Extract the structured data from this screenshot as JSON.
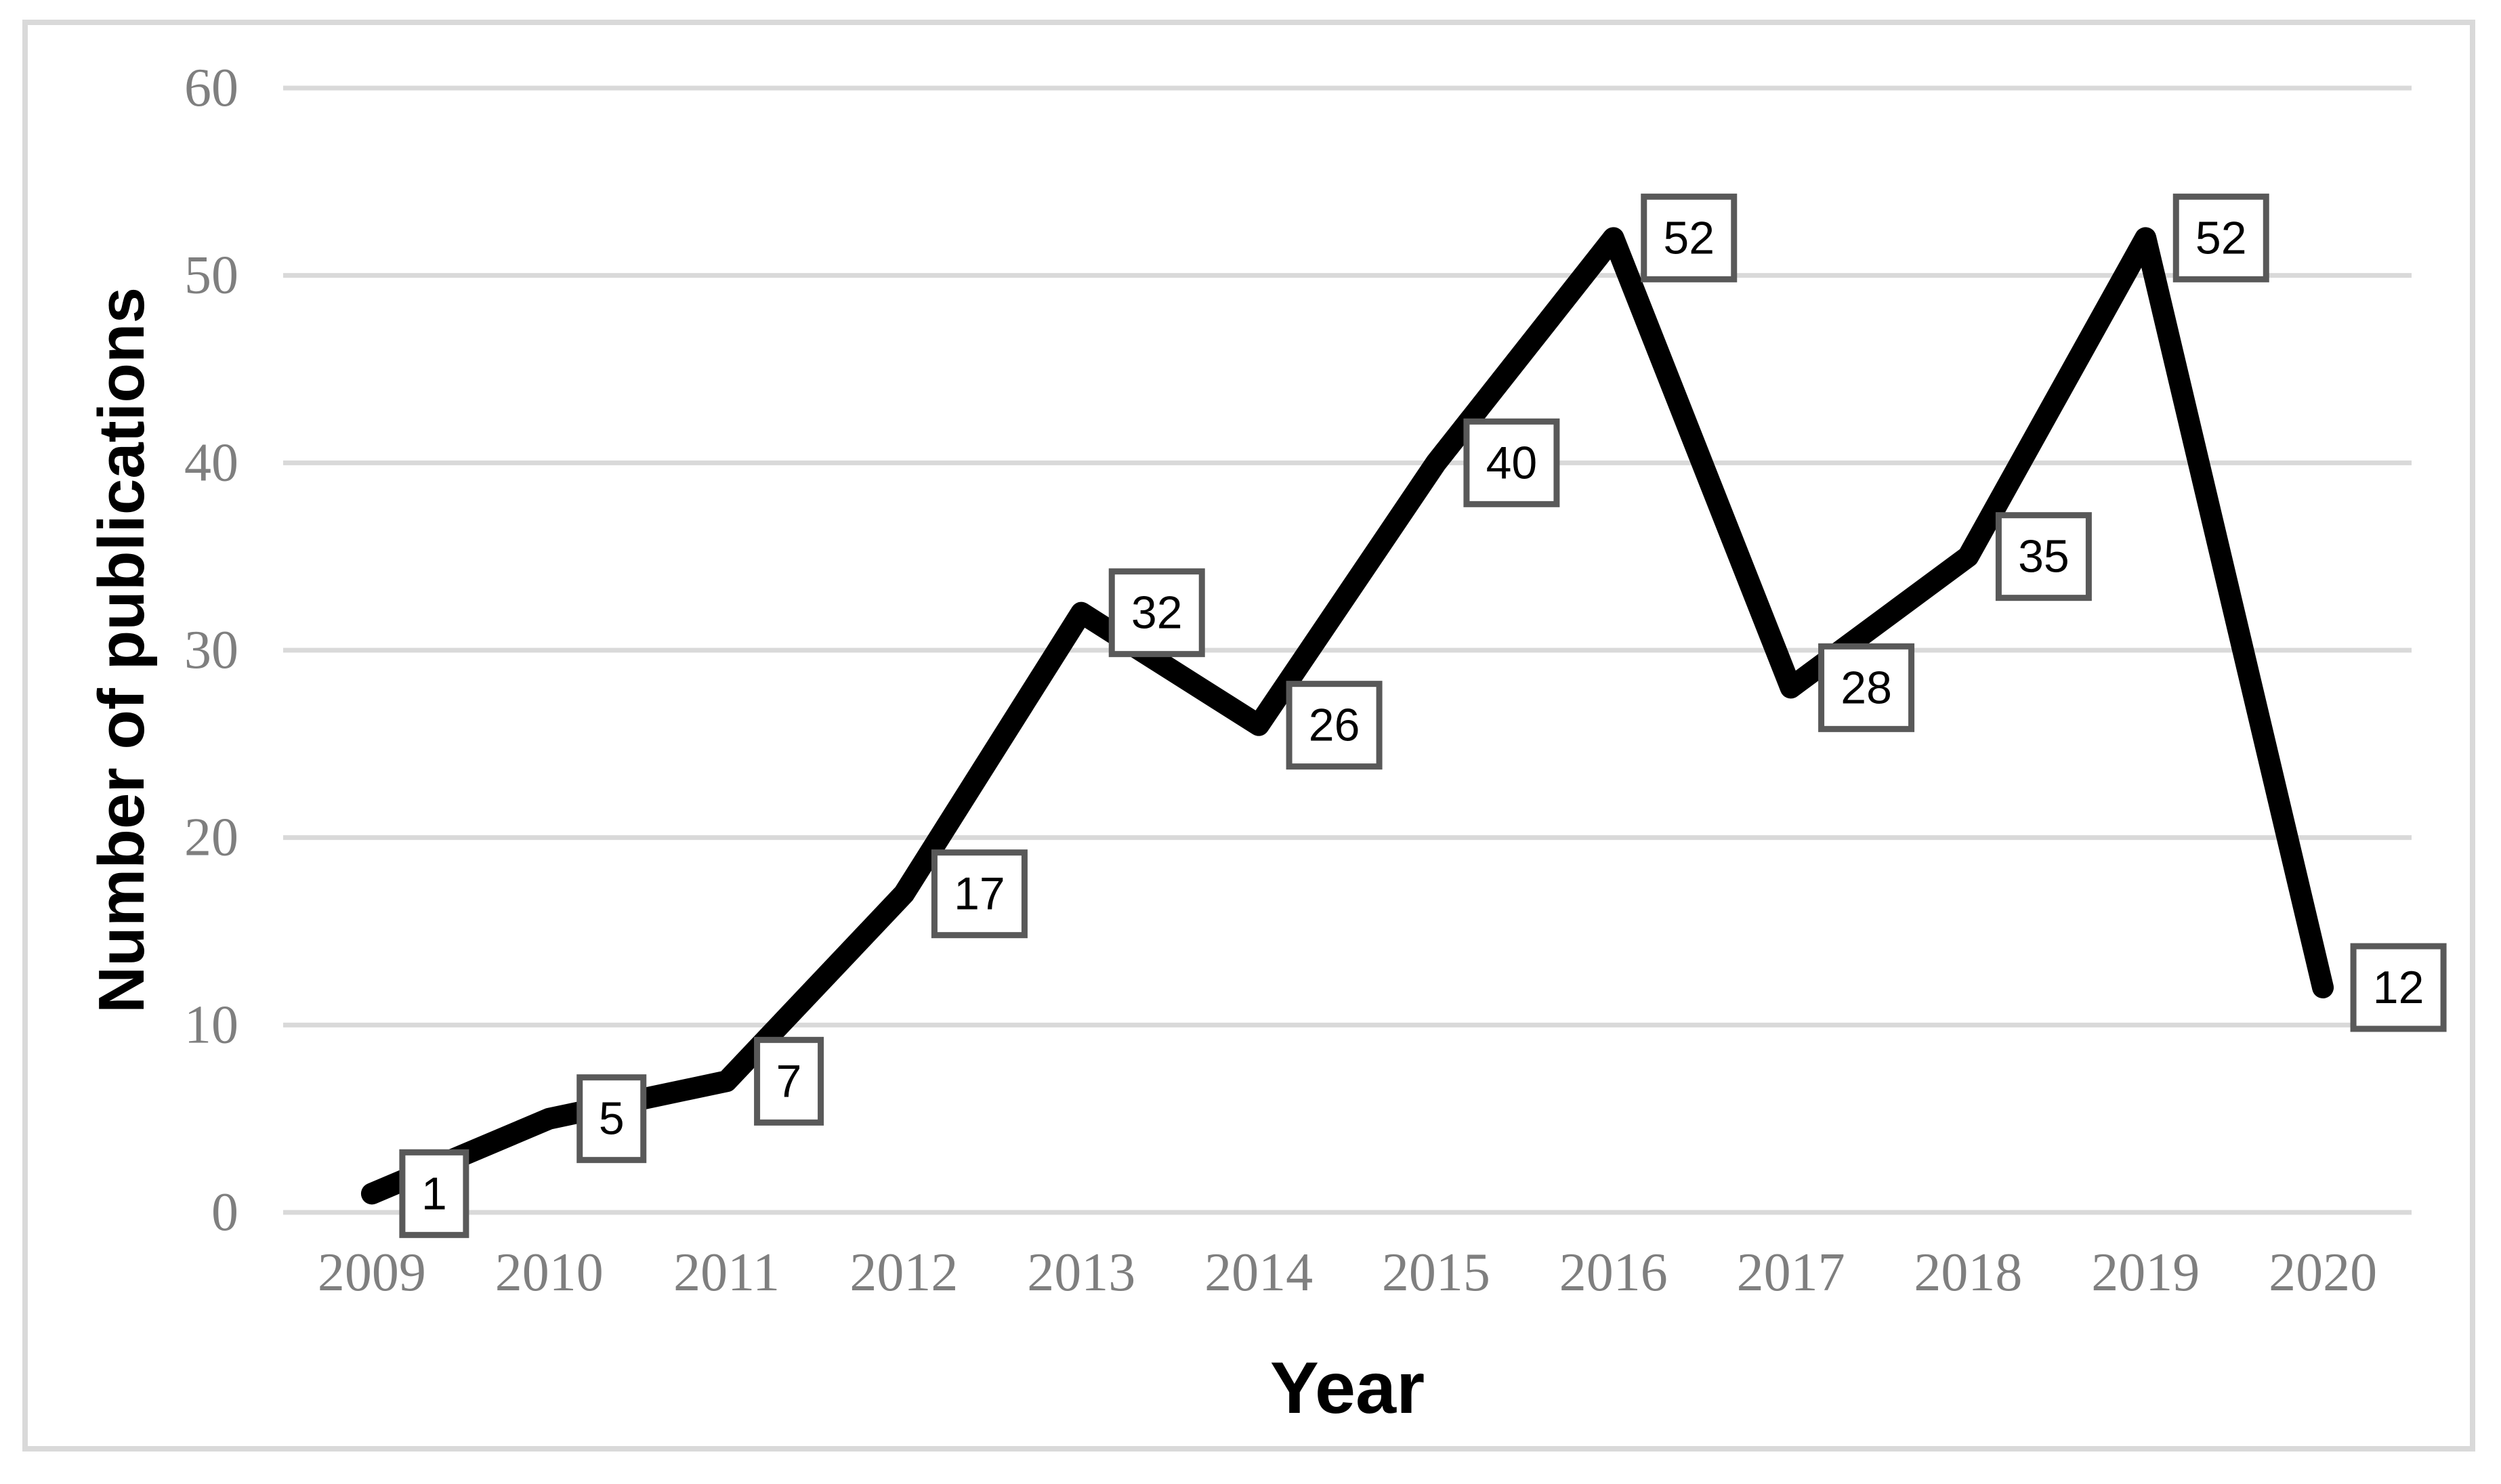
{
  "figure": {
    "background": "#ffffff",
    "border_color": "#d9d9d9"
  },
  "chart_data": {
    "type": "line",
    "title": "",
    "xlabel": "Year",
    "ylabel": "Number of publications",
    "categories": [
      "2009",
      "2010",
      "2011",
      "2012",
      "2013",
      "2014",
      "2015",
      "2016",
      "2017",
      "2018",
      "2019",
      "2020"
    ],
    "values": [
      1,
      5,
      7,
      17,
      32,
      26,
      40,
      52,
      28,
      35,
      52,
      12
    ],
    "data_labels": [
      "1",
      "5",
      "7",
      "17",
      "32",
      "26",
      "40",
      "52",
      "28",
      "35",
      "52",
      "12"
    ],
    "ylim": [
      0,
      60
    ],
    "yticks": [
      0,
      10,
      20,
      30,
      40,
      50,
      60
    ],
    "grid": "horizontal",
    "legend": "none",
    "data_labels_shown": true,
    "colors": {
      "line": "#000000",
      "gridline": "#d9d9d9",
      "tick_text": "#7f7f7f",
      "axis_title_text": "#000000",
      "label_box_border": "#595959",
      "label_box_fill": "#ffffff",
      "label_text": "#000000",
      "figure_border": "#d9d9d9",
      "background": "#ffffff"
    }
  }
}
